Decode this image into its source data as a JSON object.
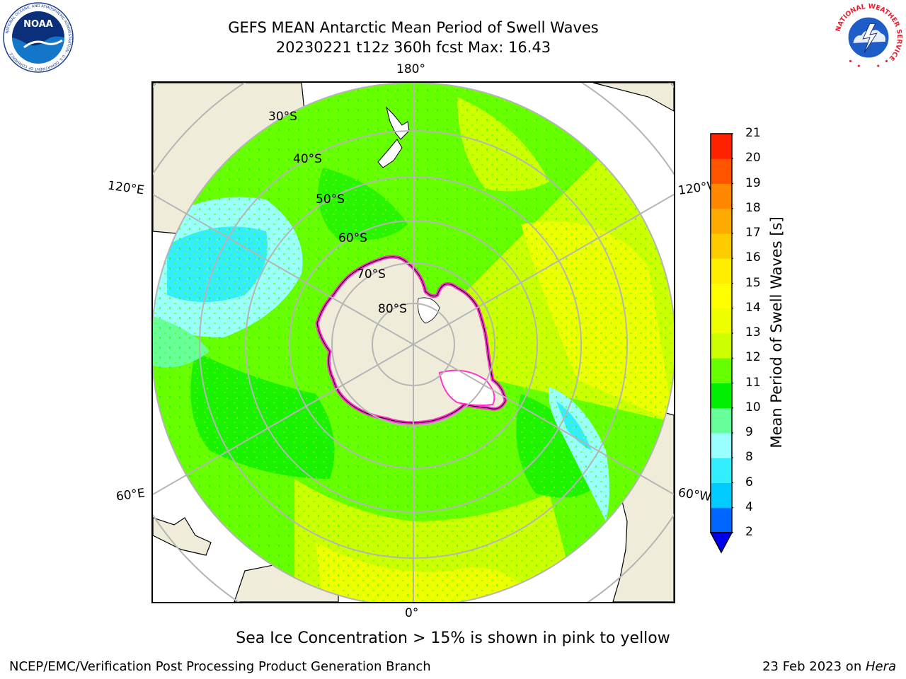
{
  "header": {
    "title_line1": "GEFS MEAN Antarctic Mean Period of Swell Waves",
    "title_line2": "20230221 t12z 360h fcst   Max: 16.43",
    "noaa_logo_text": "NOAA",
    "noaa_ring_text": "NATIONAL OCEANIC AND ATMOSPHERIC ADMINISTRATION · U.S. DEPARTMENT OF COMMERCE",
    "nws_ring_text": "NATIONAL WEATHER SERVICE"
  },
  "map": {
    "projection": "south-polar-stereographic",
    "longitude_labels": {
      "top": "180°",
      "bottom": "0°",
      "left_upper": "120°E",
      "left_lower": "60°E",
      "right_upper": "120°W",
      "right_lower": "60°W"
    },
    "latitude_labels": [
      "30°S",
      "40°S",
      "50°S",
      "60°S",
      "70°S",
      "80°S"
    ],
    "colors": {
      "land": "#efedda",
      "ice_shelf": "#ffffff",
      "grid": "#b5b5b5",
      "sea_ice_edge": "#ff33cc"
    }
  },
  "colorbar": {
    "title": "Mean Period of Swell Waves [s]",
    "tick_labels": [
      "2",
      "4",
      "6",
      "8",
      "9",
      "10",
      "11",
      "12",
      "13",
      "14",
      "15",
      "16",
      "17",
      "18",
      "19",
      "20",
      "21"
    ],
    "colors": [
      "#0066ff",
      "#00ccff",
      "#33eeff",
      "#99ffff",
      "#66ff99",
      "#00ee00",
      "#66ff00",
      "#ccff00",
      "#eeff00",
      "#ffff00",
      "#ffee00",
      "#ffcc00",
      "#ffaa00",
      "#ff8800",
      "#ff5500",
      "#ff2200"
    ],
    "under_color": "#0000ee"
  },
  "footer": {
    "note": "Sea Ice Concentration > 15% is shown in pink to yellow",
    "credit_left": "NCEP/EMC/Verification Post Processing Product Generation Branch",
    "credit_date": "23 Feb 2023 on ",
    "credit_system": "Hera"
  }
}
